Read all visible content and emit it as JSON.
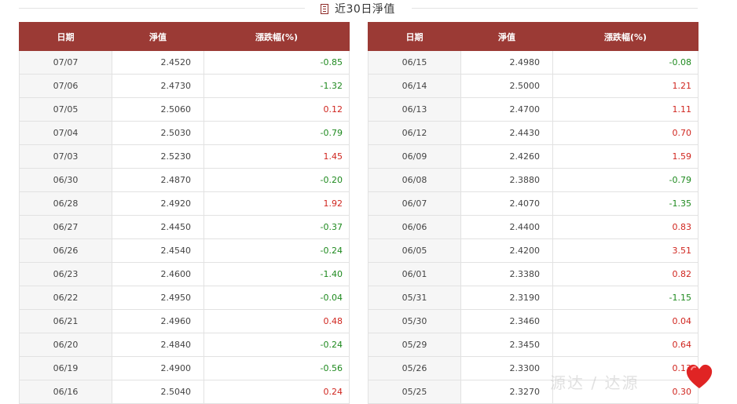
{
  "title": "近30日淨值",
  "headers": {
    "date": "日期",
    "nav": "淨值",
    "change": "漲跌幅(%)"
  },
  "colors": {
    "header_bg": "#9b3a35",
    "up": "#d0261f",
    "down": "#1f8a1f"
  },
  "left_rows": [
    {
      "date": "07/07",
      "nav": "2.4520",
      "change": "-0.85"
    },
    {
      "date": "07/06",
      "nav": "2.4730",
      "change": "-1.32"
    },
    {
      "date": "07/05",
      "nav": "2.5060",
      "change": "0.12"
    },
    {
      "date": "07/04",
      "nav": "2.5030",
      "change": "-0.79"
    },
    {
      "date": "07/03",
      "nav": "2.5230",
      "change": "1.45"
    },
    {
      "date": "06/30",
      "nav": "2.4870",
      "change": "-0.20"
    },
    {
      "date": "06/28",
      "nav": "2.4920",
      "change": "1.92"
    },
    {
      "date": "06/27",
      "nav": "2.4450",
      "change": "-0.37"
    },
    {
      "date": "06/26",
      "nav": "2.4540",
      "change": "-0.24"
    },
    {
      "date": "06/23",
      "nav": "2.4600",
      "change": "-1.40"
    },
    {
      "date": "06/22",
      "nav": "2.4950",
      "change": "-0.04"
    },
    {
      "date": "06/21",
      "nav": "2.4960",
      "change": "0.48"
    },
    {
      "date": "06/20",
      "nav": "2.4840",
      "change": "-0.24"
    },
    {
      "date": "06/19",
      "nav": "2.4900",
      "change": "-0.56"
    },
    {
      "date": "06/16",
      "nav": "2.5040",
      "change": "0.24"
    }
  ],
  "right_rows": [
    {
      "date": "06/15",
      "nav": "2.4980",
      "change": "-0.08"
    },
    {
      "date": "06/14",
      "nav": "2.5000",
      "change": "1.21"
    },
    {
      "date": "06/13",
      "nav": "2.4700",
      "change": "1.11"
    },
    {
      "date": "06/12",
      "nav": "2.4430",
      "change": "0.70"
    },
    {
      "date": "06/09",
      "nav": "2.4260",
      "change": "1.59"
    },
    {
      "date": "06/08",
      "nav": "2.3880",
      "change": "-0.79"
    },
    {
      "date": "06/07",
      "nav": "2.4070",
      "change": "-1.35"
    },
    {
      "date": "06/06",
      "nav": "2.4400",
      "change": "0.83"
    },
    {
      "date": "06/05",
      "nav": "2.4200",
      "change": "3.51"
    },
    {
      "date": "06/01",
      "nav": "2.3380",
      "change": "0.82"
    },
    {
      "date": "05/31",
      "nav": "2.3190",
      "change": "-1.15"
    },
    {
      "date": "05/30",
      "nav": "2.3460",
      "change": "0.04"
    },
    {
      "date": "05/29",
      "nav": "2.3450",
      "change": "0.64"
    },
    {
      "date": "05/26",
      "nav": "2.3300",
      "change": "0.13"
    },
    {
      "date": "05/25",
      "nav": "2.3270",
      "change": "0.30"
    }
  ],
  "watermark": "源达 / 达源",
  "watermark_icon": "heart-icon"
}
